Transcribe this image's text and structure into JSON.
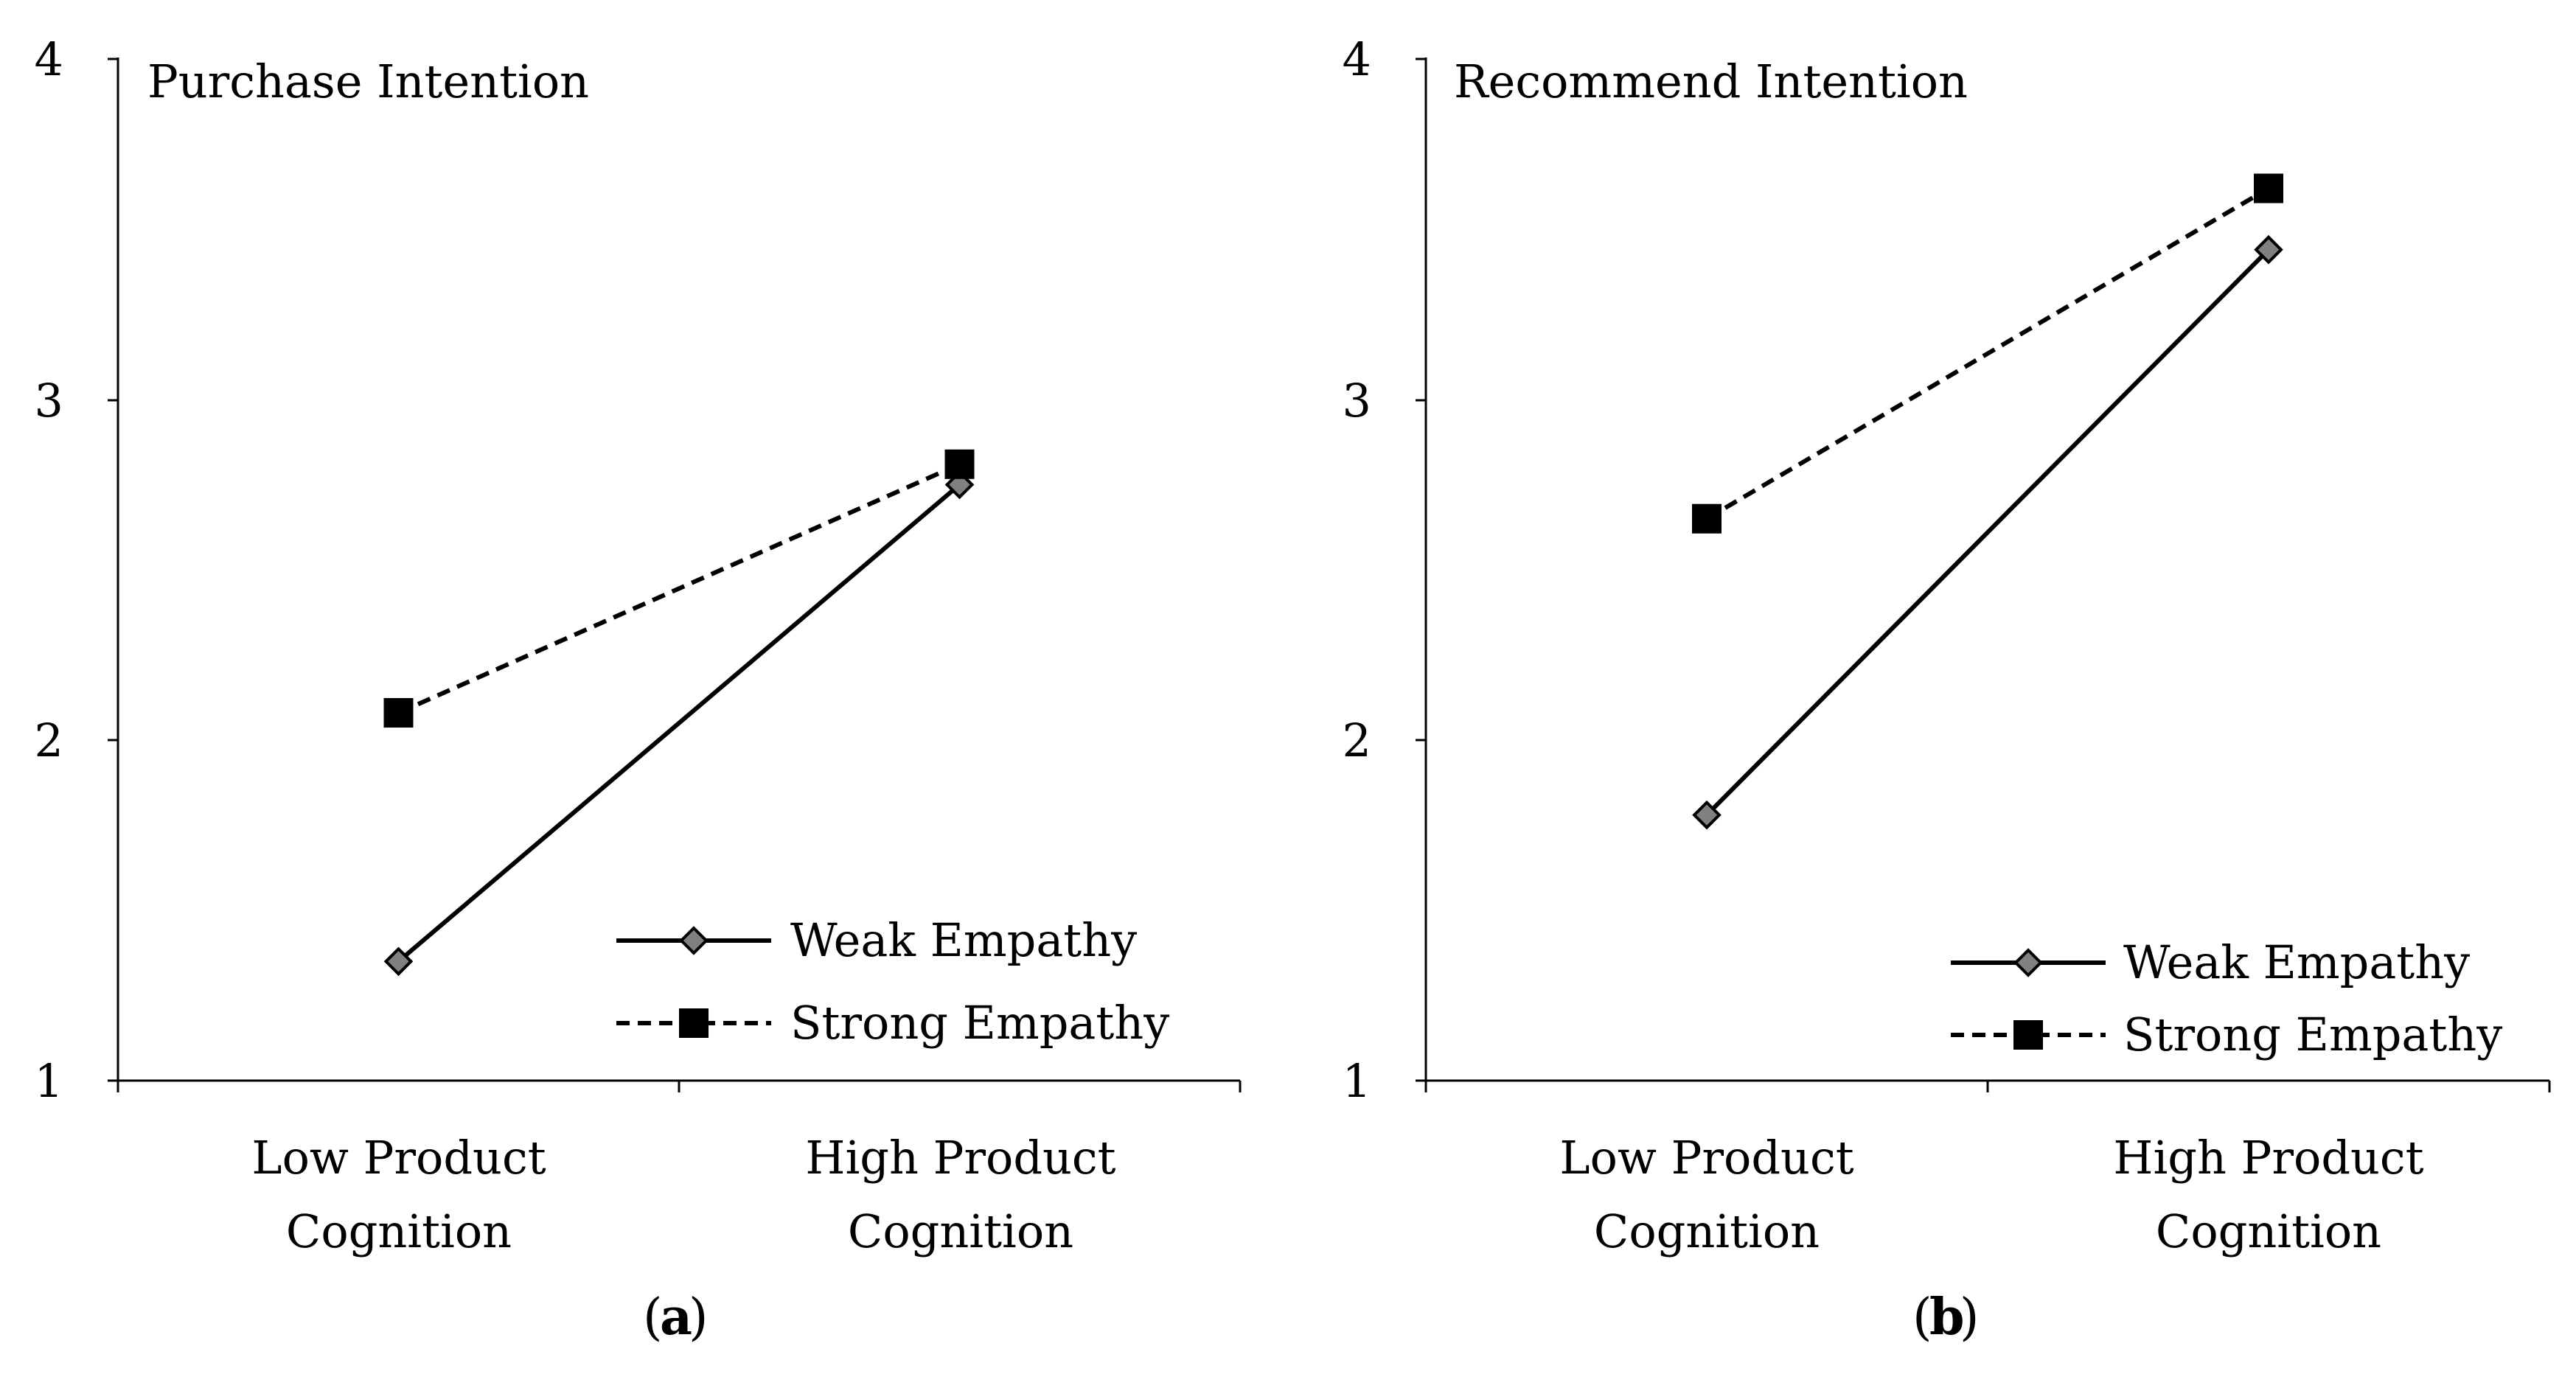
{
  "chart_data": [
    {
      "type": "line",
      "panel_label": "a",
      "title": "Purchase Intention",
      "categories": [
        [
          "Low Product",
          "Cognition"
        ],
        [
          "High Product",
          "Cognition"
        ]
      ],
      "y_ticks": [
        "1",
        "2",
        "3",
        "4"
      ],
      "ylim": [
        1,
        4
      ],
      "legend_position": "bottom-right",
      "grid": false,
      "series": [
        {
          "name": "Weak Empathy",
          "values": [
            1.35,
            2.75
          ],
          "line_style": "solid",
          "marker": "diamond",
          "marker_color": "#808080"
        },
        {
          "name": "Strong Empathy",
          "values": [
            2.08,
            2.81
          ],
          "line_style": "dashed",
          "marker": "square",
          "marker_color": "#000000"
        }
      ]
    },
    {
      "type": "line",
      "panel_label": "b",
      "title": "Recommend Intention",
      "categories": [
        [
          "Low Product",
          "Cognition"
        ],
        [
          "High Product",
          "Cognition"
        ]
      ],
      "y_ticks": [
        "1",
        "2",
        "3",
        "4"
      ],
      "ylim": [
        1,
        4
      ],
      "legend_position": "bottom-right",
      "grid": false,
      "series": [
        {
          "name": "Weak Empathy",
          "values": [
            1.78,
            3.44
          ],
          "line_style": "solid",
          "marker": "diamond",
          "marker_color": "#808080"
        },
        {
          "name": "Strong Empathy",
          "values": [
            2.65,
            3.62
          ],
          "line_style": "dashed",
          "marker": "square",
          "marker_color": "#000000"
        }
      ]
    }
  ]
}
